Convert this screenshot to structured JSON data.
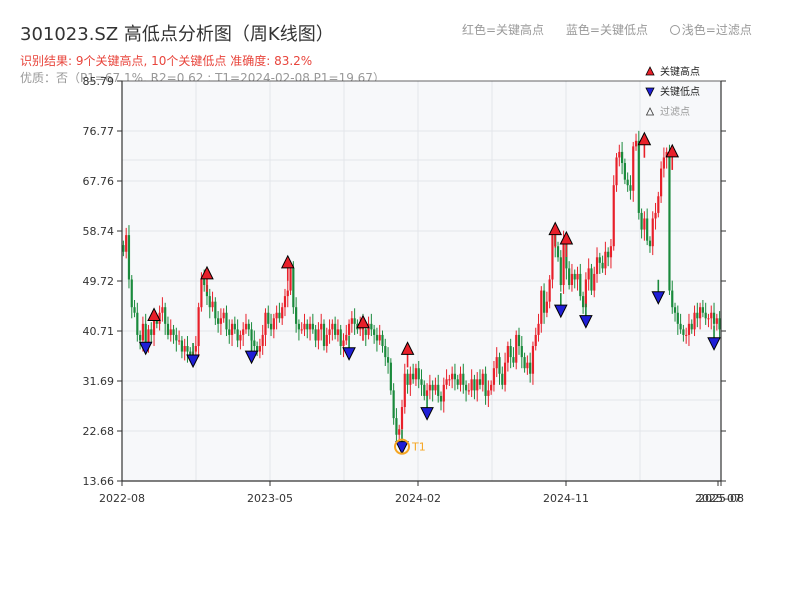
{
  "header": {
    "title": "301023.SZ 高低点分析图（周K线图）",
    "result_line": "识别结果: 9个关键高点, 10个关键低点  准确度: 83.2%",
    "quality_line": "优质：否（P1=67.1%, R2=0.62 ; T1=2024-02-08 P1=19.67）"
  },
  "top_legend": {
    "red_label": "红色=关键高点",
    "blue_label": "蓝色=关键低点",
    "light_label": "浅色=过滤点"
  },
  "colors": {
    "up": "#e8202a",
    "down": "#1a8a3c",
    "high_marker": "#e8202a",
    "low_marker": "#1f1fd6",
    "t1_marker": "#f5a623",
    "grid": "#e3e6ea",
    "plot_bg": "#f7f8fa"
  },
  "chart_data": {
    "type": "candlestick",
    "ylim": [
      13.66,
      85.79
    ],
    "y_ticks": [
      "13.66",
      "22.68",
      "31.69",
      "40.71",
      "49.72",
      "58.74",
      "67.76",
      "76.77",
      "85.79"
    ],
    "x_ticks": [
      "2022-08",
      "2023-05",
      "2024-02",
      "2024-11",
      "2025-07",
      "2025-08"
    ],
    "legend": [
      {
        "name": "关键高点",
        "marker": "triangle-up"
      },
      {
        "name": "关键低点",
        "marker": "triangle-down"
      },
      {
        "name": "过滤点",
        "marker": "triangle-up-outline"
      }
    ],
    "closes": [
      55,
      58,
      50,
      45,
      44,
      40,
      39,
      42,
      38,
      41,
      40,
      43,
      42,
      44,
      45,
      42,
      40,
      41,
      40,
      39,
      39,
      37,
      38,
      37,
      36,
      37,
      38,
      45,
      50,
      49,
      47,
      45,
      46,
      43,
      42,
      43,
      44,
      41,
      40,
      42,
      41,
      39,
      40,
      41,
      42,
      41,
      39,
      38,
      37,
      38,
      40,
      44,
      42,
      41,
      43,
      44,
      43,
      45,
      47,
      48,
      52,
      45,
      42,
      41,
      41,
      42,
      41,
      42,
      41,
      39,
      41,
      42,
      38,
      40,
      41,
      42,
      40,
      41,
      38,
      39,
      40,
      42,
      43,
      42,
      41,
      42,
      41,
      40,
      42,
      41,
      40,
      39,
      40,
      38,
      36,
      35,
      30,
      25,
      22,
      23,
      27,
      33,
      31,
      33,
      32,
      34,
      32,
      31,
      29,
      30,
      31,
      30,
      31,
      29,
      28,
      31,
      32,
      32,
      33,
      32,
      31,
      33,
      31,
      30,
      30,
      32,
      30,
      32,
      31,
      33,
      29,
      30,
      31,
      34,
      36,
      33,
      31,
      35,
      38,
      36,
      35,
      40,
      38,
      36,
      34,
      35,
      33,
      38,
      40,
      42,
      48,
      44,
      46,
      50,
      58,
      56,
      54,
      49,
      57,
      52,
      49,
      51,
      50,
      51,
      47,
      45,
      50,
      52,
      48,
      51,
      54,
      53,
      52,
      55,
      54,
      56,
      67,
      72,
      73,
      71,
      68,
      67,
      66,
      74,
      75,
      62,
      59,
      61,
      57,
      56,
      61,
      62,
      65,
      70,
      72,
      73,
      48,
      45,
      44,
      42,
      41,
      40,
      40,
      42,
      41,
      44,
      43,
      45,
      44,
      43,
      43,
      44,
      42,
      43,
      41
    ],
    "key_highs": [
      {
        "i": 11,
        "price": 43.5
      },
      {
        "i": 30,
        "price": 51.0
      },
      {
        "i": 59,
        "price": 53.0
      },
      {
        "i": 86,
        "price": 42.2
      },
      {
        "i": 102,
        "price": 37.4
      },
      {
        "i": 155,
        "price": 59.0
      },
      {
        "i": 159,
        "price": 57.3
      },
      {
        "i": 187,
        "price": 75.2
      },
      {
        "i": 197,
        "price": 73.0
      }
    ],
    "key_lows": [
      {
        "i": 8,
        "price": 37.6
      },
      {
        "i": 25,
        "price": 35.3
      },
      {
        "i": 46,
        "price": 36.0
      },
      {
        "i": 81,
        "price": 36.6
      },
      {
        "i": 100,
        "price": 19.67
      },
      {
        "i": 109,
        "price": 25.8
      },
      {
        "i": 157,
        "price": 44.3
      },
      {
        "i": 166,
        "price": 42.4
      },
      {
        "i": 192,
        "price": 46.7
      },
      {
        "i": 212,
        "price": 38.4
      }
    ],
    "t1": {
      "i": 100,
      "price": 19.67,
      "label": "T1"
    }
  }
}
